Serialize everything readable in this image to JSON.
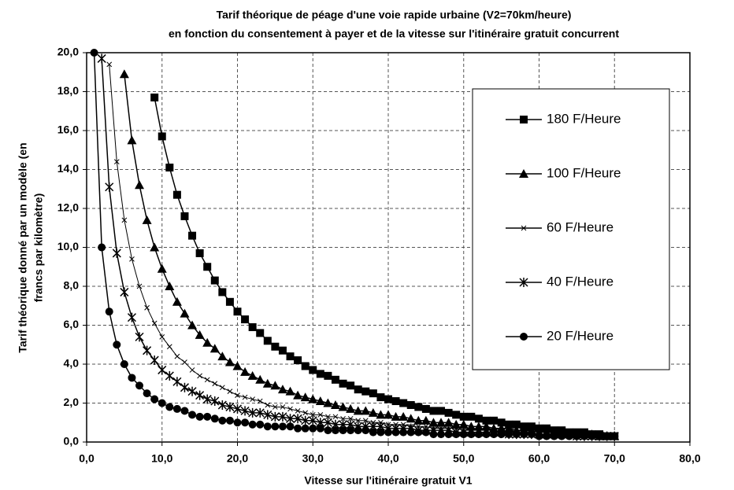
{
  "chart_data": {
    "type": "line",
    "title": "Tarif théorique de péage d'une voie rapide urbaine (V2=70km/heure)",
    "subtitle": "en fonction du consentement à payer et de la vitesse sur l'itinéraire gratuit concurrent",
    "ylabel": [
      "Tarif théorique donné par un modèle (en",
      "francs par kilomètre)"
    ],
    "xlabel": "Vitesse sur l'itinéraire gratuit V1",
    "x": [
      1,
      2,
      3,
      4,
      5,
      6,
      7,
      8,
      9,
      10,
      11,
      12,
      13,
      14,
      15,
      16,
      17,
      18,
      19,
      20,
      21,
      22,
      23,
      24,
      25,
      26,
      27,
      28,
      29,
      30,
      31,
      32,
      33,
      34,
      35,
      36,
      37,
      38,
      39,
      40,
      41,
      42,
      43,
      44,
      45,
      46,
      47,
      48,
      49,
      50,
      51,
      52,
      53,
      54,
      55,
      56,
      57,
      58,
      59,
      60,
      61,
      62,
      63,
      64,
      65,
      66,
      67,
      68,
      69,
      70
    ],
    "series": [
      {
        "name": "180 F/Heure",
        "color": "#000000",
        "marker": "square",
        "values": [
          null,
          null,
          null,
          null,
          null,
          null,
          null,
          null,
          17.7,
          15.7,
          14.1,
          12.7,
          11.6,
          10.6,
          9.7,
          9.0,
          8.3,
          7.7,
          7.2,
          6.7,
          6.3,
          5.9,
          5.6,
          5.2,
          4.9,
          4.7,
          4.4,
          4.2,
          3.9,
          3.7,
          3.5,
          3.4,
          3.2,
          3.0,
          2.9,
          2.7,
          2.6,
          2.5,
          2.3,
          2.2,
          2.1,
          2.0,
          1.9,
          1.8,
          1.7,
          1.6,
          1.6,
          1.5,
          1.4,
          1.3,
          1.3,
          1.2,
          1.1,
          1.1,
          1.0,
          0.9,
          0.9,
          0.8,
          0.8,
          0.7,
          0.7,
          0.6,
          0.6,
          0.5,
          0.5,
          0.5,
          0.4,
          0.4,
          0.3,
          0.3
        ]
      },
      {
        "name": "100 F/Heure",
        "color": "#000000",
        "marker": "triangle",
        "values": [
          null,
          null,
          null,
          null,
          18.9,
          15.5,
          13.2,
          11.4,
          10.0,
          8.9,
          8.0,
          7.2,
          6.6,
          6.0,
          5.5,
          5.1,
          4.8,
          4.4,
          4.1,
          3.9,
          3.6,
          3.4,
          3.2,
          3.0,
          2.9,
          2.7,
          2.6,
          2.4,
          2.3,
          2.2,
          2.1,
          2.0,
          1.9,
          1.8,
          1.7,
          1.6,
          1.6,
          1.5,
          1.4,
          1.4,
          1.3,
          1.3,
          1.2,
          1.1,
          1.1,
          1.0,
          1.0,
          1.0,
          0.9,
          0.9,
          0.8,
          0.8,
          0.8,
          0.7,
          0.7,
          0.7,
          0.6,
          0.6,
          0.6,
          0.5,
          0.5,
          0.5,
          0.5,
          0.4,
          0.4,
          0.4,
          0.4,
          0.3,
          0.3,
          0.3
        ]
      },
      {
        "name": "60 F/Heure",
        "color": "#000000",
        "marker": "cross",
        "values": [
          null,
          null,
          19.4,
          14.4,
          11.4,
          9.4,
          8.0,
          6.9,
          6.1,
          5.4,
          4.9,
          4.4,
          4.1,
          3.7,
          3.4,
          3.2,
          3.0,
          2.8,
          2.6,
          2.4,
          2.3,
          2.2,
          2.1,
          1.9,
          1.8,
          1.8,
          1.7,
          1.6,
          1.5,
          1.4,
          1.4,
          1.3,
          1.3,
          1.2,
          1.2,
          1.1,
          1.1,
          1.0,
          1.0,
          0.9,
          0.9,
          0.9,
          0.8,
          0.8,
          0.8,
          0.7,
          0.7,
          0.7,
          0.7,
          0.6,
          0.6,
          0.6,
          0.6,
          0.6,
          0.5,
          0.5,
          0.5,
          0.5,
          0.5,
          0.4,
          0.4,
          0.4,
          0.4,
          0.4,
          0.4,
          0.4,
          0.3,
          0.3,
          0.3,
          0.3
        ]
      },
      {
        "name": "40 F/Heure",
        "color": "#000000",
        "marker": "star",
        "values": [
          null,
          19.7,
          13.1,
          9.7,
          7.7,
          6.4,
          5.4,
          4.7,
          4.2,
          3.7,
          3.4,
          3.1,
          2.8,
          2.6,
          2.4,
          2.2,
          2.1,
          1.9,
          1.8,
          1.7,
          1.6,
          1.5,
          1.5,
          1.4,
          1.3,
          1.3,
          1.2,
          1.2,
          1.1,
          1.1,
          1.0,
          1.0,
          0.9,
          0.9,
          0.9,
          0.8,
          0.8,
          0.8,
          0.8,
          0.7,
          0.7,
          0.7,
          0.7,
          0.6,
          0.6,
          0.6,
          0.6,
          0.6,
          0.5,
          0.5,
          0.5,
          0.5,
          0.5,
          0.5,
          0.5,
          0.4,
          0.4,
          0.4,
          0.4,
          0.4,
          0.4,
          0.4,
          0.4,
          0.4,
          0.3,
          0.3,
          0.3,
          0.3,
          0.3,
          0.3
        ]
      },
      {
        "name": "20 F/Heure",
        "color": "#000000",
        "marker": "circle",
        "values": [
          20.0,
          10.0,
          6.7,
          5.0,
          4.0,
          3.3,
          2.9,
          2.5,
          2.2,
          2.0,
          1.8,
          1.7,
          1.6,
          1.4,
          1.3,
          1.3,
          1.2,
          1.1,
          1.1,
          1.0,
          1.0,
          0.9,
          0.9,
          0.8,
          0.8,
          0.8,
          0.8,
          0.7,
          0.7,
          0.7,
          0.7,
          0.6,
          0.6,
          0.6,
          0.6,
          0.6,
          0.6,
          0.5,
          0.5,
          0.5,
          0.5,
          0.5,
          0.5,
          0.5,
          0.5,
          0.4,
          0.4,
          0.4,
          0.4,
          0.4,
          0.4,
          0.4,
          0.4,
          0.4,
          0.4,
          0.4,
          0.4,
          0.4,
          0.4,
          0.3,
          0.3,
          0.3,
          0.3,
          0.3,
          0.3,
          0.3,
          0.3,
          0.3,
          0.3,
          0.3
        ]
      }
    ],
    "xlim": [
      0,
      80
    ],
    "xticks": [
      {
        "value": 0,
        "label": "0,0"
      },
      {
        "value": 10,
        "label": "10,0"
      },
      {
        "value": 20,
        "label": "20,0"
      },
      {
        "value": 30,
        "label": "30,0"
      },
      {
        "value": 40,
        "label": "40,0"
      },
      {
        "value": 50,
        "label": "50,0"
      },
      {
        "value": 60,
        "label": "60,0"
      },
      {
        "value": 70,
        "label": "70,0"
      },
      {
        "value": 80,
        "label": "80,0"
      }
    ],
    "ylim": [
      0,
      20
    ],
    "yticks": [
      {
        "value": 0,
        "label": "0,0"
      },
      {
        "value": 2,
        "label": "2,0"
      },
      {
        "value": 4,
        "label": "4,0"
      },
      {
        "value": 6,
        "label": "6,0"
      },
      {
        "value": 8,
        "label": "8,0"
      },
      {
        "value": 10,
        "label": "10,0"
      },
      {
        "value": 12,
        "label": "12,0"
      },
      {
        "value": 14,
        "label": "14,0"
      },
      {
        "value": 16,
        "label": "16,0"
      },
      {
        "value": 18,
        "label": "18,0"
      },
      {
        "value": 20,
        "label": "20,0"
      }
    ],
    "grid": true,
    "legend": "right"
  }
}
